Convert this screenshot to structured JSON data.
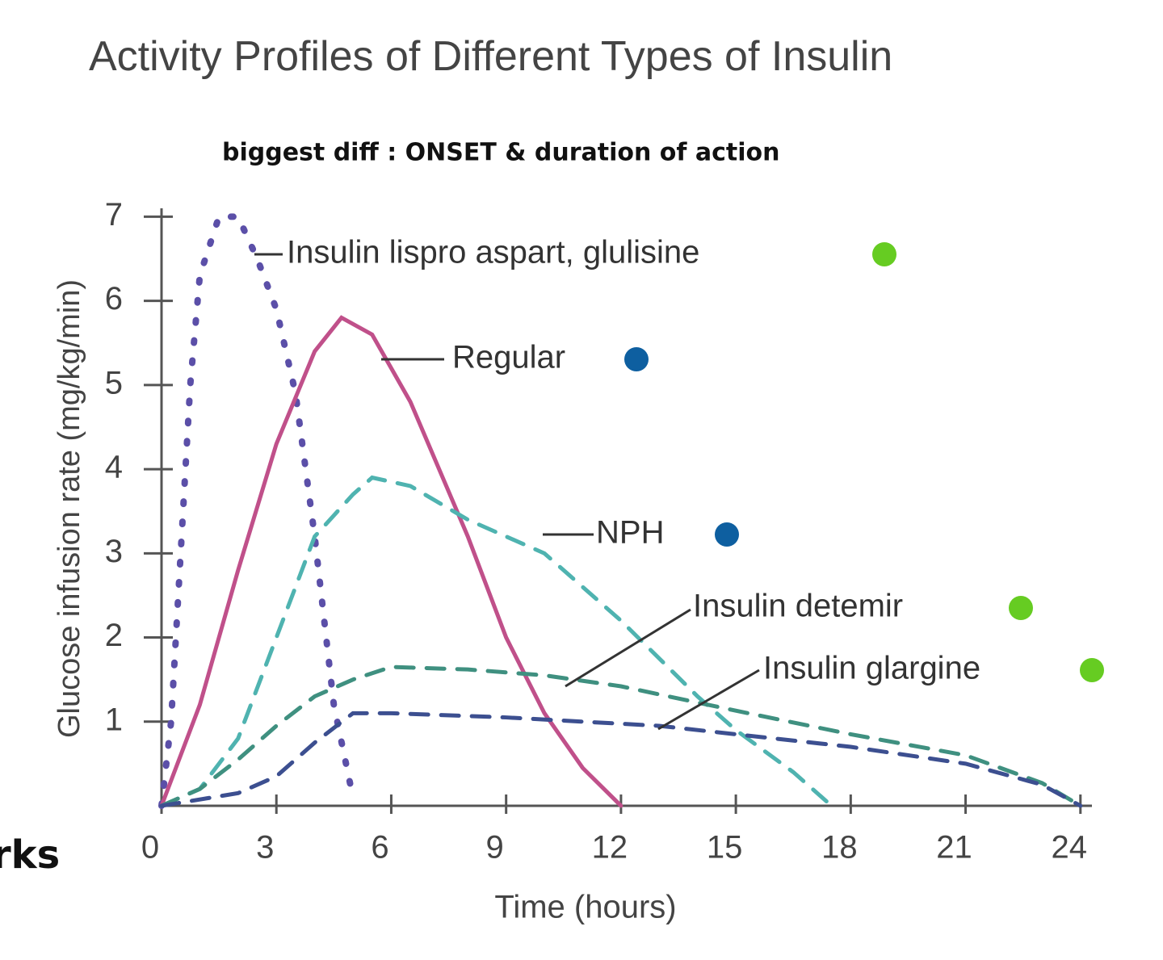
{
  "chart_data": {
    "type": "line",
    "title": "Activity Profiles of Different Types of Insulin",
    "annotations": [
      "biggest diff :  ONSET & duration of action",
      "rks"
    ],
    "x_label": "Time (hours)",
    "y_label": "Glucose infusion rate (mg/kg/min)",
    "xlim": [
      0,
      24.3
    ],
    "ylim": [
      0,
      7.1
    ],
    "xticks": [
      0,
      3,
      6,
      9,
      12,
      15,
      18,
      21,
      24
    ],
    "yticks": [
      1,
      2,
      3,
      4,
      5,
      6,
      7
    ],
    "series": [
      {
        "name": "Insulin lispro aspart, glulisine",
        "color": "#5b4fa8",
        "line_style": "dotted",
        "label_dot_color": "#66cc22",
        "x": [
          0,
          0.25,
          0.5,
          0.75,
          1,
          1.5,
          2,
          2.5,
          3,
          3.5,
          4,
          4.5,
          5
        ],
        "values": [
          0,
          1,
          3,
          5,
          6.3,
          7.0,
          7.0,
          6.5,
          5.9,
          4.9,
          3.2,
          1.2,
          0.1
        ]
      },
      {
        "name": "Regular",
        "color": "#c0508a",
        "line_style": "solid",
        "label_dot_color": "#0e5fa0",
        "x": [
          0,
          1,
          2,
          3,
          4,
          4.7,
          5.5,
          6.5,
          8,
          9,
          10,
          11,
          12
        ],
        "values": [
          0,
          1.2,
          2.8,
          4.3,
          5.4,
          5.8,
          5.6,
          4.8,
          3.2,
          2.0,
          1.1,
          0.45,
          0
        ]
      },
      {
        "name": "NPH",
        "color": "#4fb3b0",
        "line_style": "dashed",
        "label_dot_color": "#0e5fa0",
        "x": [
          0,
          1,
          2,
          3,
          4,
          5,
          5.5,
          6.5,
          8,
          10,
          12,
          14,
          15,
          16.5,
          17.5
        ],
        "values": [
          0,
          0.2,
          0.8,
          2,
          3.2,
          3.7,
          3.9,
          3.8,
          3.4,
          3.0,
          2.2,
          1.3,
          0.9,
          0.4,
          0
        ]
      },
      {
        "name": "Insulin detemir",
        "color": "#3f9080",
        "line_style": "dashed",
        "label_dot_color": "#66cc22",
        "x": [
          0,
          1,
          2,
          3,
          4,
          5,
          6,
          8,
          10,
          12,
          15,
          18,
          21,
          23,
          24
        ],
        "values": [
          0,
          0.2,
          0.55,
          0.95,
          1.3,
          1.5,
          1.65,
          1.62,
          1.55,
          1.42,
          1.13,
          0.85,
          0.6,
          0.27,
          0
        ]
      },
      {
        "name": "Insulin glargine",
        "color": "#3c4f90",
        "line_style": "dashed",
        "label_dot_color": "#66cc22",
        "x": [
          0,
          2,
          3,
          4,
          5,
          6,
          9,
          13,
          15,
          18,
          21,
          23,
          24
        ],
        "values": [
          0,
          0.15,
          0.35,
          0.75,
          1.1,
          1.1,
          1.05,
          0.95,
          0.85,
          0.7,
          0.5,
          0.25,
          0
        ]
      }
    ]
  }
}
